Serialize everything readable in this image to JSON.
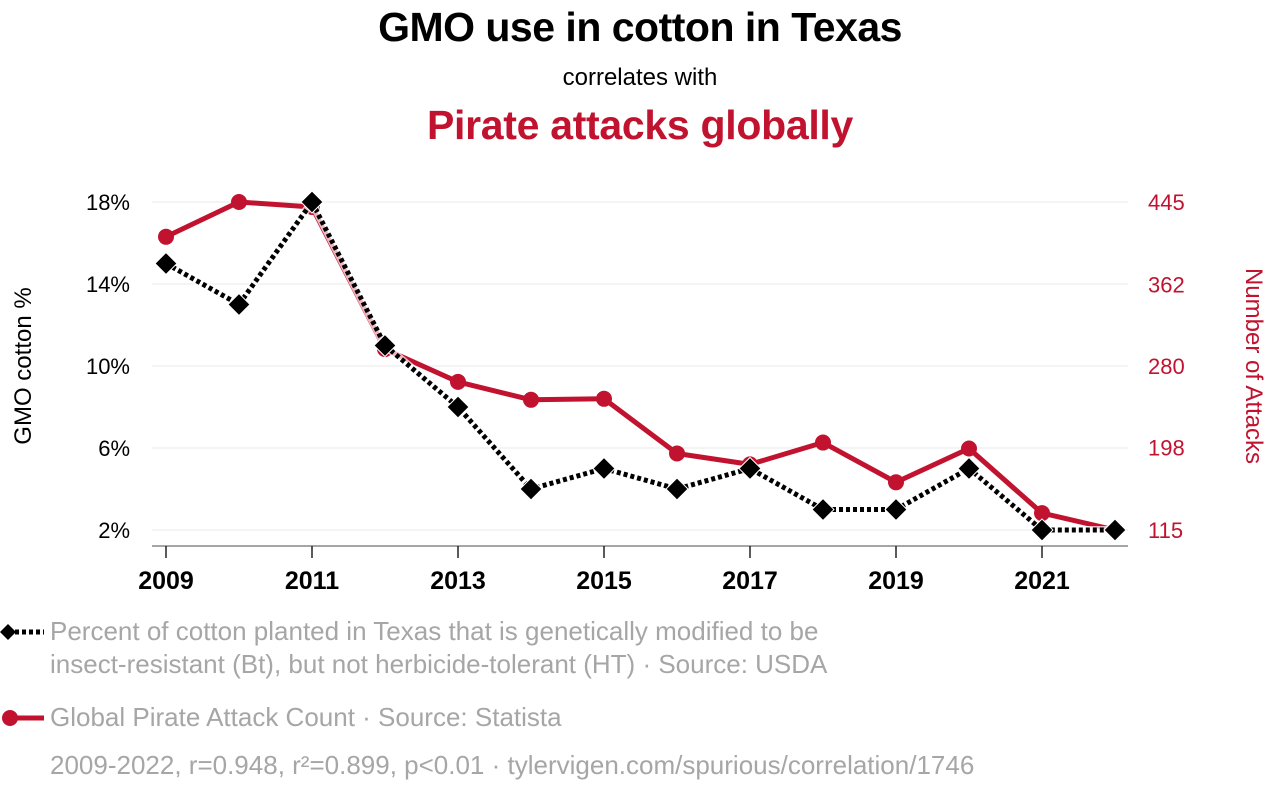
{
  "header": {
    "title": "GMO use in cotton in Texas",
    "subtitle": "correlates with",
    "title2": "Pirate attacks globally"
  },
  "colors": {
    "series1": "#000000",
    "series2": "#c1132f",
    "legend_text": "#a6a6a6",
    "grid": "#f0f0f0"
  },
  "chart_data": {
    "type": "line",
    "title": "GMO use in cotton in Texas correlates with Pirate attacks globally",
    "x": [
      2009,
      2010,
      2011,
      2012,
      2013,
      2014,
      2015,
      2016,
      2017,
      2018,
      2019,
      2020,
      2021,
      2022
    ],
    "x_ticks": [
      "2009",
      "2011",
      "2013",
      "2015",
      "2017",
      "2019",
      "2021"
    ],
    "xlim": [
      2009,
      2022
    ],
    "y_left": {
      "label": "GMO cotton %",
      "ticks": [
        "18%",
        "14%",
        "10%",
        "6%",
        "2%"
      ],
      "tick_values": [
        18,
        14,
        10,
        6,
        2
      ],
      "ylim": [
        2,
        18
      ]
    },
    "y_right": {
      "label": "Number of Attacks",
      "ticks": [
        "445",
        "362",
        "280",
        "198",
        "115"
      ],
      "tick_values": [
        445,
        362,
        280,
        198,
        115
      ],
      "ylim": [
        115,
        445
      ]
    },
    "grid": true,
    "series": [
      {
        "name": "Percent of cotton planted in Texas that is genetically modified to be insect-resistant (Bt), but not herbicide-tolerant (HT) · Source: USDA",
        "axis": "left",
        "style": "dotted-diamond",
        "values": [
          15,
          13,
          18,
          11,
          8,
          4,
          5,
          4,
          5,
          3,
          3,
          5,
          2,
          2
        ]
      },
      {
        "name": "Global Pirate Attack Count · Source: Statista",
        "axis": "right",
        "style": "solid-circle",
        "values": [
          410,
          445,
          440,
          297,
          264,
          246,
          247,
          192,
          181,
          203,
          163,
          197,
          132,
          115
        ]
      }
    ],
    "legend_position": "bottom-left"
  },
  "legend": {
    "item1_line1": "Percent of cotton planted in Texas that is genetically modified to be",
    "item1_line2": "insect-resistant (Bt), but not herbicide-tolerant (HT) · Source: USDA",
    "item2": "Global Pirate Attack Count · Source: Statista"
  },
  "footer": {
    "stats": "2009-2022, r=0.948, r²=0.899, p<0.01 · tylervigen.com/spurious/correlation/1746"
  }
}
